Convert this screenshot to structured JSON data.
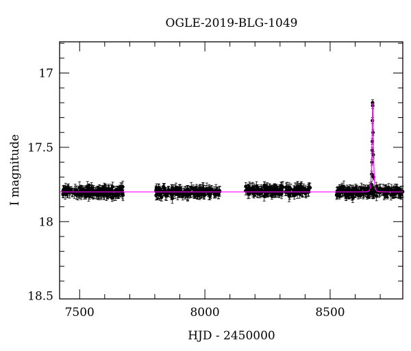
{
  "chart_data": {
    "type": "scatter",
    "title": "OGLE-2019-BLG-1049",
    "xlabel": "HJD - 2450000",
    "ylabel": "I magnitude",
    "xlim": [
      7420,
      8790
    ],
    "ylim": [
      18.52,
      16.79
    ],
    "y_inverted": true,
    "x_ticks": [
      7500,
      8000,
      8500
    ],
    "x_tick_labels": [
      "7500",
      "8000",
      "8500"
    ],
    "y_ticks": [
      17,
      17.5,
      18,
      18.5
    ],
    "y_tick_labels": [
      "17",
      "17.5",
      "18",
      "18.5"
    ],
    "grid": false,
    "colors": {
      "points": "#000000",
      "model": "#ff00ff"
    },
    "series": [
      {
        "type": "scatter_with_errorbars",
        "seasons": [
          {
            "x_range": [
              7432,
              7675
            ],
            "mean_mag": 17.8,
            "n_points": 150
          },
          {
            "x_range": [
              7805,
              8060
            ],
            "mean_mag": 17.8,
            "n_points": 150
          },
          {
            "x_range": [
              8160,
              8420
            ],
            "mean_mag": 17.79,
            "n_points": 160
          },
          {
            "x_range": [
              8525,
              8790
            ],
            "mean_mag": 17.8,
            "n_points": 180
          }
        ],
        "typical_error": 0.03,
        "event_points": [
          {
            "x": 8665,
            "y": 17.75
          },
          {
            "x": 8666,
            "y": 17.68
          },
          {
            "x": 8667,
            "y": 17.6
          },
          {
            "x": 8668,
            "y": 17.52
          },
          {
            "x": 8668.5,
            "y": 17.46
          },
          {
            "x": 8669,
            "y": 17.32
          },
          {
            "x": 8669.5,
            "y": 17.2
          },
          {
            "x": 8670,
            "y": 17.22
          },
          {
            "x": 8671,
            "y": 17.4
          },
          {
            "x": 8672,
            "y": 17.55
          },
          {
            "x": 8673,
            "y": 17.7
          }
        ]
      },
      {
        "type": "model_line",
        "baseline": 17.8,
        "peak_x": 8670,
        "peak_mag": 17.2,
        "tE": 4
      }
    ]
  }
}
